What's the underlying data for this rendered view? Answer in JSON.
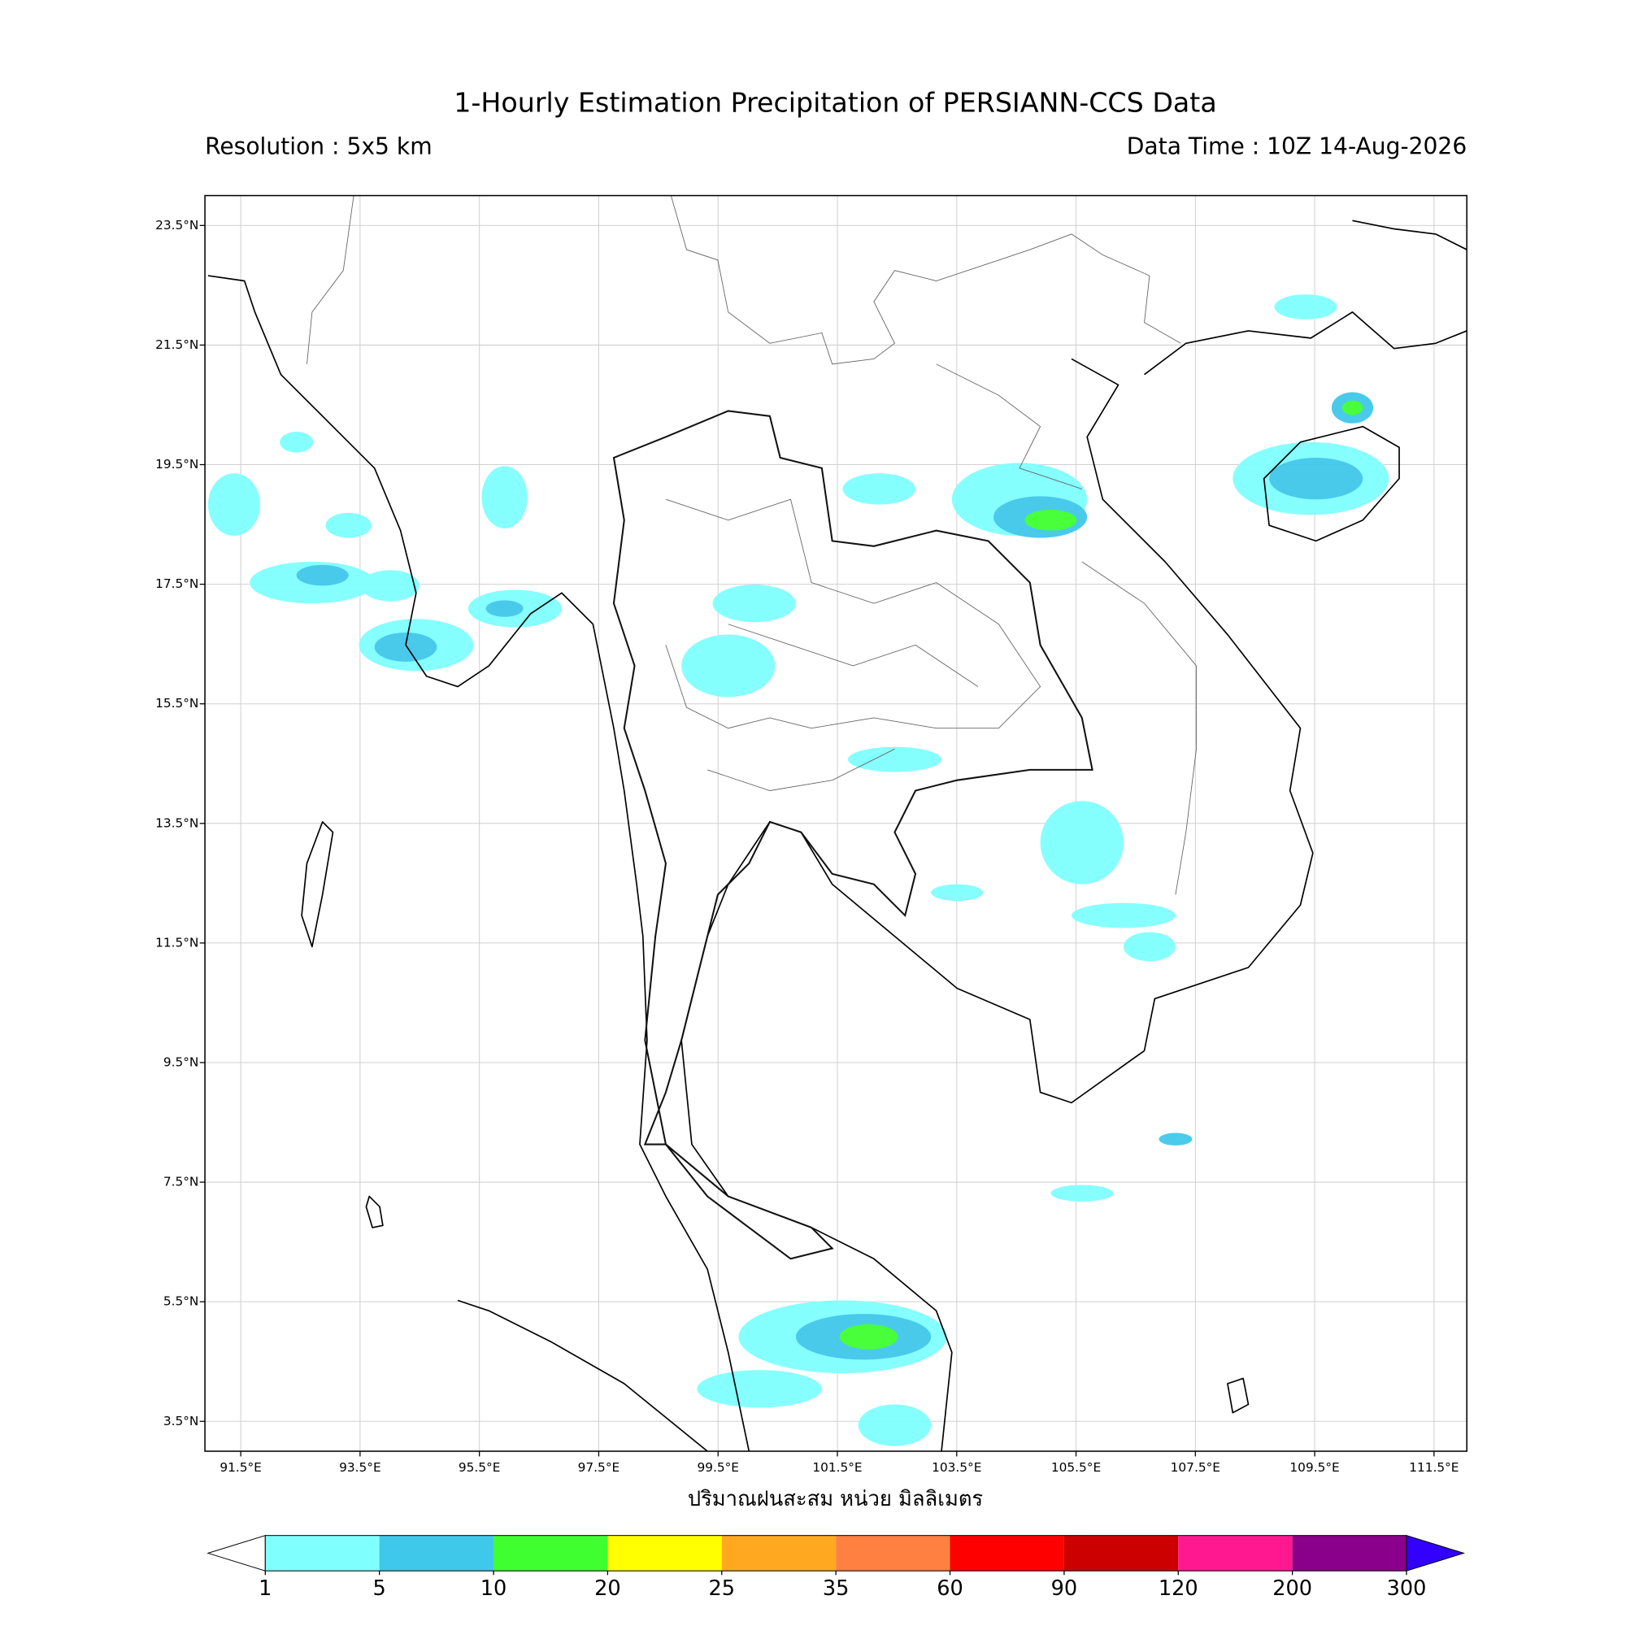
{
  "map": {
    "title": "1-Hourly Estimation Precipitation of PERSIANN-CCS Data",
    "resolution": "Resolution : 5x5 km",
    "data_time": "Data Time : 10Z 14-Aug-2026",
    "xlabel": "ปริมาณฝนสะสม หน่วย มิลลิเมตร",
    "lonlim": [
      90.9,
      112.05
    ],
    "latlim": [
      3.0,
      24.0
    ],
    "grid": true,
    "lonticks": [
      {
        "value": 91.5,
        "label": "91.5°E"
      },
      {
        "value": 93.5,
        "label": "93.5°E"
      },
      {
        "value": 95.5,
        "label": "95.5°E"
      },
      {
        "value": 97.5,
        "label": "97.5°E"
      },
      {
        "value": 99.5,
        "label": "99.5°E"
      },
      {
        "value": 101.5,
        "label": "101.5°E"
      },
      {
        "value": 103.5,
        "label": "103.5°E"
      },
      {
        "value": 105.5,
        "label": "105.5°E"
      },
      {
        "value": 107.5,
        "label": "107.5°E"
      },
      {
        "value": 109.5,
        "label": "109.5°E"
      },
      {
        "value": 111.5,
        "label": "111.5°E"
      }
    ],
    "latticks": [
      {
        "value": 23.5,
        "label": "23.5°N"
      },
      {
        "value": 21.5,
        "label": "21.5°N"
      },
      {
        "value": 19.5,
        "label": "19.5°N"
      },
      {
        "value": 17.5,
        "label": "17.5°N"
      },
      {
        "value": 15.5,
        "label": "15.5°N"
      },
      {
        "value": 13.5,
        "label": "13.5°N"
      },
      {
        "value": 11.5,
        "label": "11.5°N"
      },
      {
        "value": 9.5,
        "label": "9.5°N"
      },
      {
        "value": 7.5,
        "label": "7.5°N"
      },
      {
        "value": 5.5,
        "label": "5.5°N"
      },
      {
        "value": 3.5,
        "label": "3.5°N"
      }
    ],
    "colorbar": {
      "bounds": [
        1,
        5,
        10,
        20,
        25,
        35,
        60,
        90,
        120,
        200,
        300
      ],
      "colors": [
        "#80ffff",
        "#40c8ea",
        "#40ff30",
        "#ffff00",
        "#ffa820",
        "#ff8040",
        "#ff0000",
        "#cc0000",
        "#ff1890",
        "#8b008b"
      ],
      "under_color": "#ffffff",
      "over_color": "#3300ff"
    }
  }
}
